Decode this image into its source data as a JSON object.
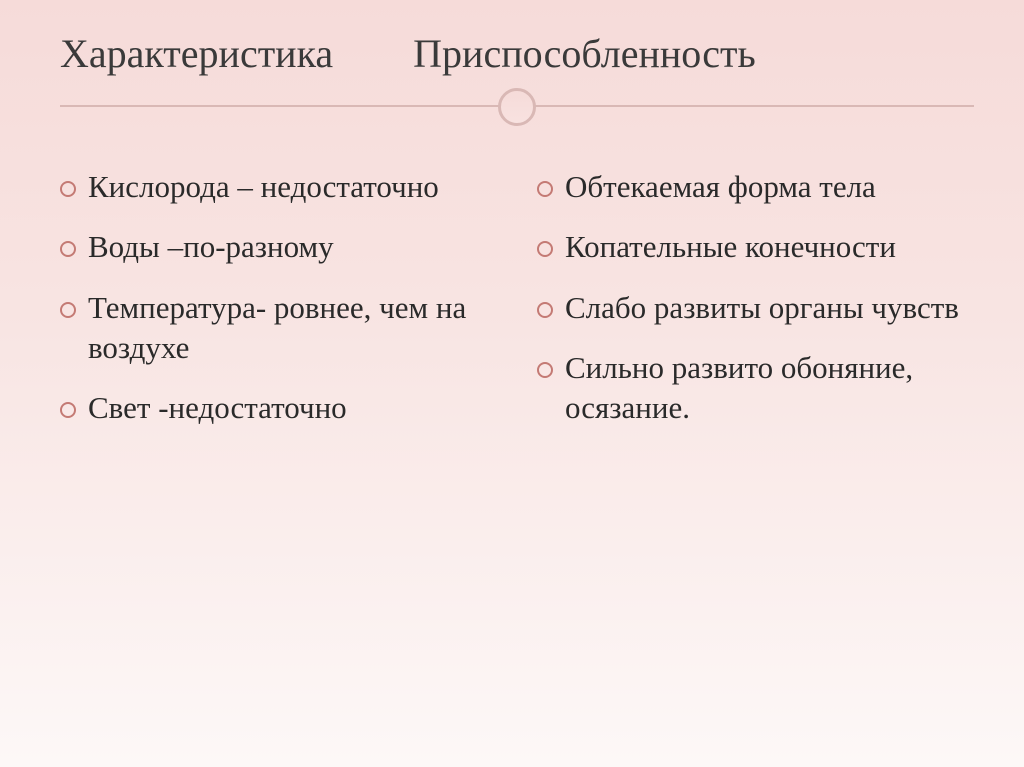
{
  "slide": {
    "header_left": "Характеристика",
    "header_right": "Приспособленность",
    "col1": [
      "Кислорода – недостаточно",
      "Воды –по-разному",
      "Температура- ровнее, чем на воздухе",
      "Свет -недостаточно"
    ],
    "col2": [
      "Обтекаемая форма тела",
      "Копательные конечности",
      "Слабо развиты органы чувств",
      "Сильно развито обоняние, осязание."
    ]
  },
  "style": {
    "bg_gradient_top": "#f6dbd9",
    "bg_gradient_bottom": "#fdf8f7",
    "header_color": "#3a3a3a",
    "header_fontsize": 40,
    "body_color": "#2a2a2a",
    "body_fontsize": 31,
    "bullet_border": "#c47a74",
    "divider_color": "#d9b8b5"
  }
}
